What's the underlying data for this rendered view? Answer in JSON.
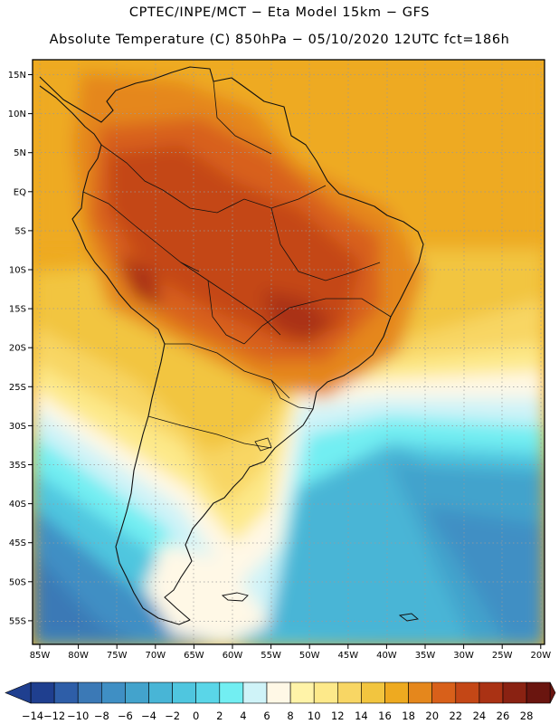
{
  "header": {
    "line1": "CPTEC/INPE/MCT −  Eta Model 15km − GFS",
    "line2": "Absolute Temperature (C) 850hPa − 05/10/2020 12UTC fct=186h"
  },
  "map": {
    "lat_labels": [
      "15N",
      "10N",
      "5N",
      "EQ",
      "5S",
      "10S",
      "15S",
      "20S",
      "25S",
      "30S",
      "35S",
      "40S",
      "45S",
      "50S",
      "55S"
    ],
    "lon_labels": [
      "85W",
      "80W",
      "75W",
      "70W",
      "65W",
      "60W",
      "55W",
      "50W",
      "45W",
      "40W",
      "35W",
      "30W",
      "25W",
      "20W"
    ],
    "lat_range": [
      15,
      -57
    ],
    "lon_range": [
      -85,
      -20
    ]
  },
  "legend": {
    "labels": [
      "−14",
      "−12",
      "−10",
      "−8",
      "−6",
      "−4",
      "−2",
      "0",
      "2",
      "4",
      "6",
      "8",
      "10",
      "12",
      "14",
      "16",
      "18",
      "20",
      "22",
      "24",
      "26",
      "28"
    ],
    "colors": [
      "#1f3f8f",
      "#2e5ea8",
      "#3b79b6",
      "#3f8fc4",
      "#43a3cc",
      "#48b5d6",
      "#4fc6df",
      "#5ad6e8",
      "#72eef2",
      "#cff3f8",
      "#fff8e6",
      "#fff3a8",
      "#fde98a",
      "#f8d664",
      "#f2c53f",
      "#eeaa20",
      "#e5871c",
      "#d8601a",
      "#c44716",
      "#aa3214",
      "#8a2212",
      "#6a150f"
    ]
  }
}
